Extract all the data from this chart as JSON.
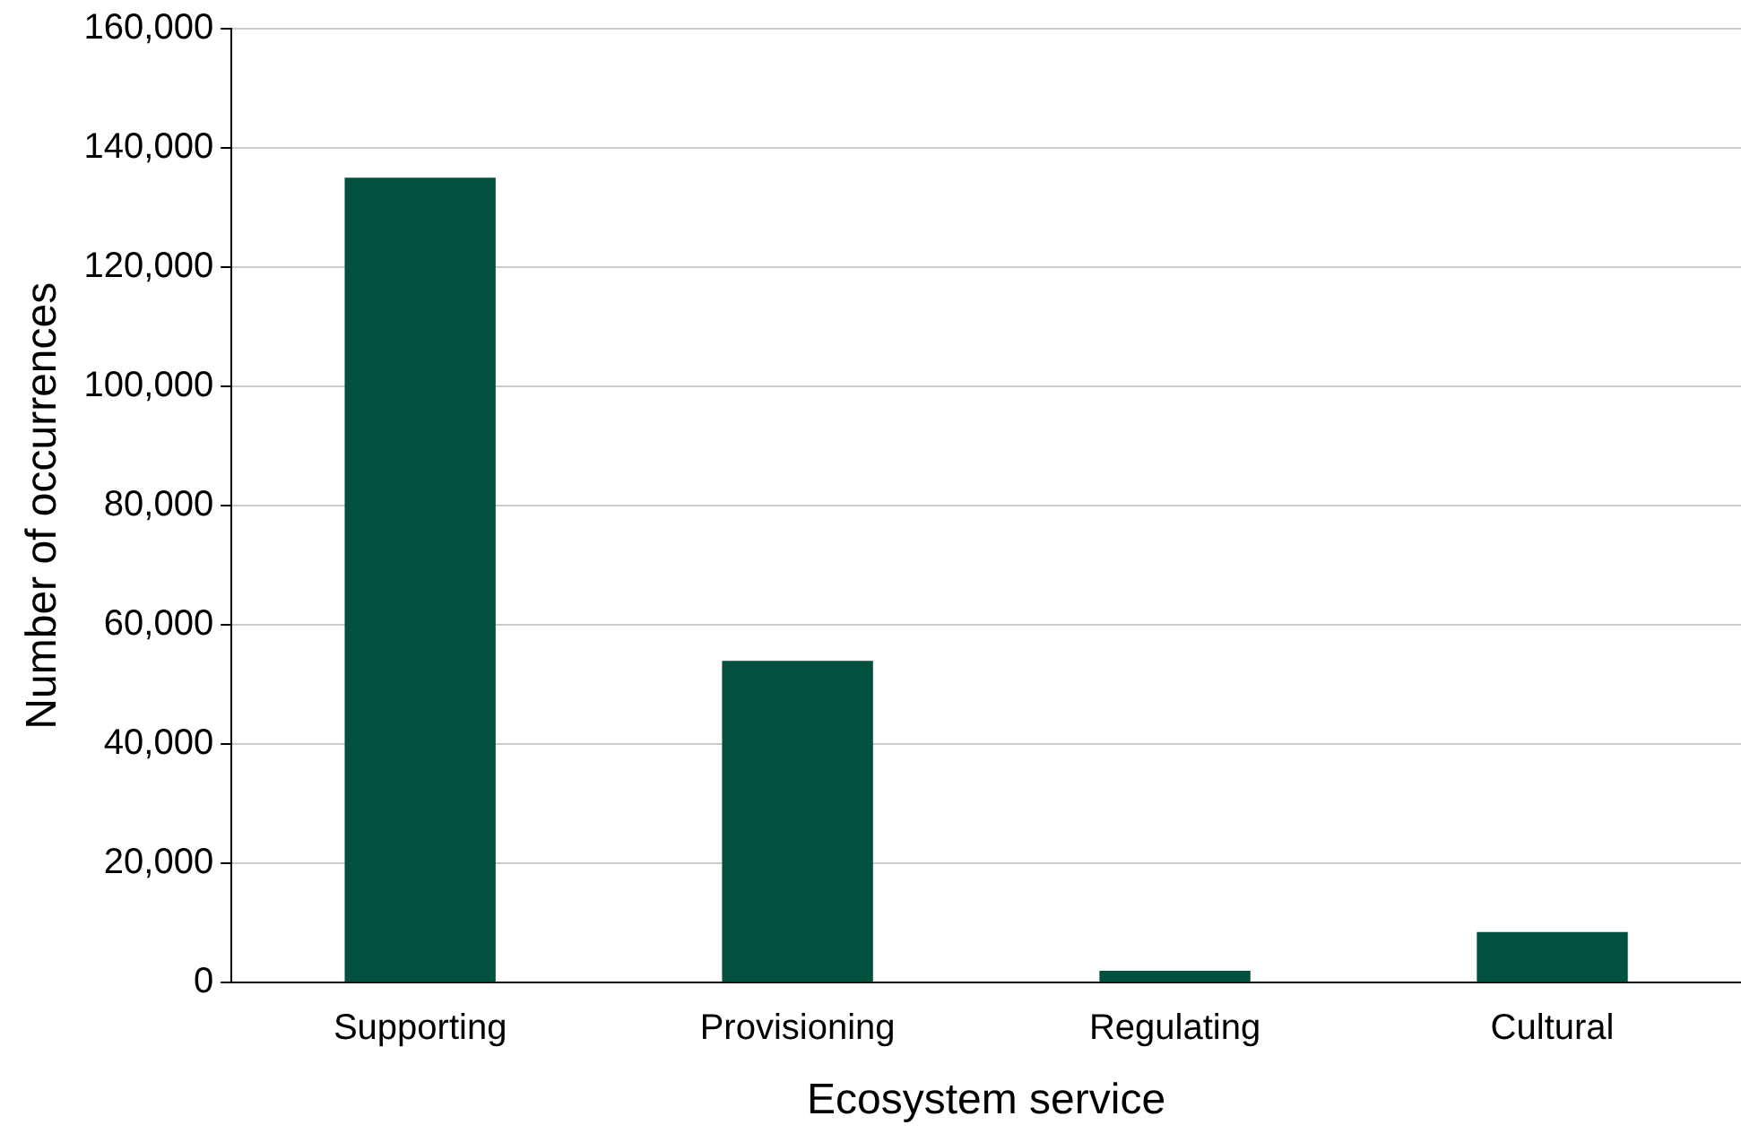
{
  "chart_data": {
    "type": "bar",
    "xlabel": "Ecosystem service",
    "ylabel": "Number of occurrences",
    "categories": [
      "Supporting",
      "Provisioning",
      "Regulating",
      "Cultural"
    ],
    "values": [
      135000,
      54000,
      2000,
      8500
    ],
    "color": "#02513f",
    "ylim": [
      0,
      160000
    ],
    "yticks": [
      {
        "value": 0,
        "label": "0"
      },
      {
        "value": 20000,
        "label": "20,000"
      },
      {
        "value": 40000,
        "label": "40,000"
      },
      {
        "value": 60000,
        "label": "60,000"
      },
      {
        "value": 80000,
        "label": "80,000"
      },
      {
        "value": 100000,
        "label": "100,000"
      },
      {
        "value": 120000,
        "label": "120,000"
      },
      {
        "value": 140000,
        "label": "140,000"
      },
      {
        "value": 160000,
        "label": "160,000"
      }
    ],
    "grid": "y",
    "legend": false
  }
}
